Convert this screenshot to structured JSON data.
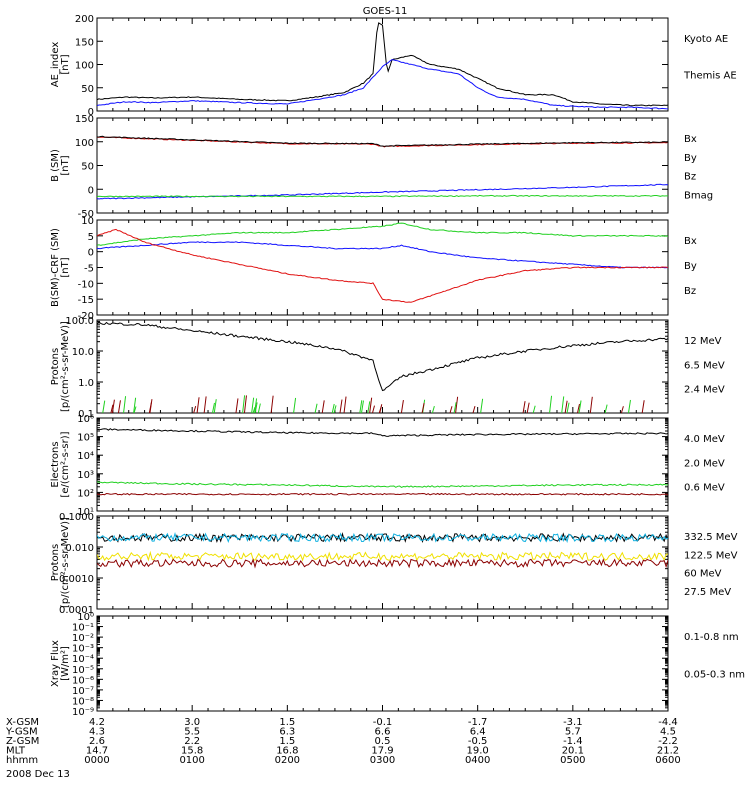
{
  "title": "GOES-11",
  "colors": {
    "black": "#000000",
    "blue": "#1010ff",
    "green": "#20d020",
    "red": "#e01010",
    "darkred": "#8b0000",
    "cyan": "#10b0e0",
    "yellow": "#f0e000"
  },
  "bottom": {
    "rows": [
      {
        "label": "X-GSM",
        "values": [
          "4.2",
          "3.0",
          "1.5",
          "-0.1",
          "-1.7",
          "-3.1",
          "-4.4"
        ]
      },
      {
        "label": "Y-GSM",
        "values": [
          "4.3",
          "5.5",
          "6.3",
          "6.6",
          "6.4",
          "5.7",
          "4.5"
        ]
      },
      {
        "label": "Z-GSM",
        "values": [
          "2.6",
          "2.2",
          "1.5",
          "0.5",
          "-0.5",
          "-1.4",
          "-2.2"
        ]
      },
      {
        "label": "MLT",
        "values": [
          "14.7",
          "15.8",
          "16.8",
          "17.9",
          "19.0",
          "20.1",
          "21.2"
        ]
      },
      {
        "label": "hhmm",
        "values": [
          "0000",
          "0100",
          "0200",
          "0300",
          "0400",
          "0500",
          "0600"
        ]
      }
    ],
    "date": "2008 Dec 13"
  },
  "chart_data": [
    {
      "type": "line",
      "ylabel": [
        "AE_index",
        "[nT]"
      ],
      "ylim": [
        0,
        200
      ],
      "yticks": [
        "0",
        "50",
        "100",
        "150",
        "200"
      ],
      "legend": [
        {
          "name": "Kyoto AE",
          "color": "#1010ff"
        },
        {
          "name": "Themis AE",
          "color": "#000000"
        }
      ],
      "series": [
        {
          "name": "Themis AE",
          "color": "#000000",
          "x": [
            0,
            0.3,
            0.6,
            1.0,
            1.5,
            2.0,
            2.3,
            2.6,
            2.8,
            2.9,
            2.95,
            3.0,
            3.05,
            3.1,
            3.3,
            3.5,
            3.8,
            4.0,
            4.2,
            4.5,
            4.8,
            5.0,
            5.3,
            5.6,
            6.0
          ],
          "values": [
            25,
            30,
            28,
            30,
            25,
            22,
            30,
            40,
            60,
            80,
            190,
            185,
            80,
            110,
            120,
            100,
            90,
            70,
            50,
            35,
            35,
            20,
            15,
            12,
            12
          ]
        },
        {
          "name": "Kyoto AE",
          "color": "#1010ff",
          "x": [
            0,
            0.3,
            0.6,
            1.0,
            1.5,
            2.0,
            2.3,
            2.6,
            2.8,
            3.0,
            3.1,
            3.3,
            3.5,
            3.8,
            4.0,
            4.2,
            4.5,
            4.8,
            5.0,
            5.3,
            5.6,
            6.0
          ],
          "values": [
            12,
            20,
            18,
            22,
            18,
            15,
            25,
            35,
            50,
            95,
            110,
            100,
            90,
            80,
            50,
            30,
            25,
            12,
            10,
            8,
            8,
            5
          ]
        }
      ]
    },
    {
      "type": "line",
      "ylabel": [
        "B (SM)",
        "[nT]"
      ],
      "ylim": [
        -50,
        150
      ],
      "yticks": [
        "-50",
        "0",
        "50",
        "100",
        "150"
      ],
      "legend": [
        {
          "name": "Bx",
          "color": "#1010ff"
        },
        {
          "name": "By",
          "color": "#20d020"
        },
        {
          "name": "Bz",
          "color": "#e01010"
        },
        {
          "name": "Bmag",
          "color": "#000000"
        }
      ],
      "series": [
        {
          "name": "Bz",
          "color": "#e01010",
          "x": [
            0,
            1,
            2,
            2.9,
            3.0,
            3.5,
            4.0,
            5.0,
            6.0
          ],
          "values": [
            110,
            103,
            96,
            95,
            90,
            92,
            94,
            97,
            98
          ]
        },
        {
          "name": "Bmag",
          "color": "#000000",
          "x": [
            0,
            1,
            2,
            2.9,
            3.0,
            3.5,
            4.0,
            5.0,
            6.0
          ],
          "values": [
            111,
            104,
            97,
            96,
            91,
            93,
            95,
            98,
            99
          ]
        },
        {
          "name": "Bx",
          "color": "#1010ff",
          "x": [
            0,
            1,
            2,
            3,
            4,
            5,
            6
          ],
          "values": [
            -20,
            -16,
            -12,
            -6,
            -1,
            4,
            10
          ]
        },
        {
          "name": "By",
          "color": "#20d020",
          "x": [
            0,
            1,
            2,
            3,
            4,
            5,
            6
          ],
          "values": [
            -15,
            -15,
            -15,
            -15,
            -14,
            -14,
            -14
          ]
        }
      ]
    },
    {
      "type": "line",
      "ylabel": [
        "B(SM)-CRF (SM)",
        "[nT]"
      ],
      "ylim": [
        -20,
        10
      ],
      "yticks": [
        "-20",
        "-15",
        "-10",
        "-5",
        "0",
        "5",
        "10"
      ],
      "legend": [
        {
          "name": "Bx",
          "color": "#1010ff"
        },
        {
          "name": "By",
          "color": "#20d020"
        },
        {
          "name": "Bz",
          "color": "#e01010"
        }
      ],
      "series": [
        {
          "name": "By",
          "color": "#20d020",
          "x": [
            0,
            0.5,
            1.0,
            1.5,
            2.0,
            2.5,
            3.0,
            3.2,
            3.5,
            4.0,
            4.5,
            5.0,
            5.5,
            6.0
          ],
          "values": [
            2,
            4,
            5,
            6,
            6,
            7,
            8,
            9,
            7,
            6,
            6,
            5,
            5,
            5
          ]
        },
        {
          "name": "Bx",
          "color": "#1010ff",
          "x": [
            0,
            0.5,
            1.0,
            1.5,
            2.0,
            2.5,
            3.0,
            3.2,
            3.5,
            4.0,
            4.5,
            5.0,
            5.5,
            6.0
          ],
          "values": [
            1,
            2,
            3,
            3,
            2,
            1,
            1,
            2,
            0,
            -2,
            -3,
            -4,
            -5,
            -5
          ]
        },
        {
          "name": "Bz",
          "color": "#e01010",
          "x": [
            0,
            0.2,
            0.5,
            1.0,
            1.5,
            2.0,
            2.5,
            2.9,
            3.0,
            3.3,
            3.6,
            4.0,
            4.5,
            5.0,
            5.5,
            6.0
          ],
          "values": [
            5,
            7,
            3,
            -1,
            -4,
            -7,
            -9,
            -10,
            -15,
            -16,
            -13,
            -9,
            -6,
            -5,
            -5,
            -5
          ]
        }
      ]
    },
    {
      "type": "line",
      "ylabel": [
        "Protons",
        "[p/(cm²-s-sr-MeV)]"
      ],
      "yscale": "log",
      "ylim": [
        0.1,
        100
      ],
      "yticks": [
        "0.1",
        "1.0",
        "10.0",
        "100.0"
      ],
      "legend": [
        {
          "name": "12 MeV",
          "color": "#8b0000"
        },
        {
          "name": "6.5 MeV",
          "color": "#20d020"
        },
        {
          "name": "2.4 MeV",
          "color": "#000000"
        }
      ],
      "series": [
        {
          "name": "2.4 MeV",
          "color": "#000000",
          "x": [
            0,
            0.5,
            1.0,
            1.5,
            2.0,
            2.5,
            2.9,
            3.0,
            3.2,
            3.5,
            4.0,
            4.5,
            5.0,
            5.5,
            6.0
          ],
          "values": [
            80,
            70,
            45,
            30,
            20,
            12,
            5,
            0.5,
            1.5,
            2.5,
            6,
            10,
            15,
            20,
            25
          ]
        }
      ]
    },
    {
      "type": "line",
      "ylabel": [
        "Electrons",
        "[e/(cm²-s-sr)]"
      ],
      "yscale": "log",
      "ylim": [
        10,
        1000000
      ],
      "yticks": [
        "10¹",
        "10²",
        "10³",
        "10⁴",
        "10⁵",
        "10⁶"
      ],
      "legend": [
        {
          "name": "4.0 MeV",
          "color": "#8b0000"
        },
        {
          "name": "2.0 MeV",
          "color": "#20d020"
        },
        {
          "name": "0.6 MeV",
          "color": "#000000"
        }
      ],
      "series": [
        {
          "name": "0.6 MeV",
          "color": "#000000",
          "x": [
            0,
            1,
            2,
            2.9,
            3.0,
            3.5,
            4.0,
            5.0,
            6.0
          ],
          "values": [
            250000,
            200000,
            160000,
            150000,
            110000,
            120000,
            130000,
            140000,
            150000
          ]
        },
        {
          "name": "2.0 MeV",
          "color": "#20d020",
          "x": [
            0,
            1,
            2,
            3,
            4,
            5,
            6
          ],
          "values": [
            350,
            280,
            250,
            200,
            220,
            250,
            260
          ]
        },
        {
          "name": "4.0 MeV",
          "color": "#8b0000",
          "x": [
            0,
            1,
            2,
            3,
            4,
            5,
            6
          ],
          "values": [
            80,
            80,
            80,
            80,
            80,
            80,
            80
          ]
        }
      ]
    },
    {
      "type": "line",
      "ylabel": [
        "Protons",
        "[p/(cm²-s-sr-MeV)]"
      ],
      "yscale": "log",
      "ylim": [
        0.0001,
        0.1
      ],
      "yticks": [
        "0.0001",
        "0.0010",
        "0.010",
        "0.1000"
      ],
      "legend": [
        {
          "name": "332.5 MeV",
          "color": "#8b0000"
        },
        {
          "name": "122.5 MeV",
          "color": "#f0e000"
        },
        {
          "name": "60 MeV",
          "color": "#10b0e0"
        },
        {
          "name": "27.5 MeV",
          "color": "#000000"
        }
      ],
      "series": [
        {
          "name": "27.5 MeV",
          "color": "#000000",
          "x": [
            0,
            6
          ],
          "values": [
            0.02,
            0.02
          ]
        },
        {
          "name": "60 MeV",
          "color": "#10b0e0",
          "x": [
            0,
            6
          ],
          "values": [
            0.02,
            0.02
          ]
        },
        {
          "name": "122.5 MeV",
          "color": "#f0e000",
          "x": [
            0,
            6
          ],
          "values": [
            0.005,
            0.005
          ]
        },
        {
          "name": "332.5 MeV",
          "color": "#8b0000",
          "x": [
            0,
            6
          ],
          "values": [
            0.003,
            0.003
          ]
        }
      ]
    },
    {
      "type": "line",
      "ylabel": [
        "Xray Flux",
        "[W/m²]"
      ],
      "yscale": "log",
      "ylim": [
        1e-09,
        1
      ],
      "yticks": [
        "10⁻⁹",
        "10⁻⁸",
        "10⁻⁷",
        "10⁻⁶",
        "10⁻⁵",
        "10⁻⁴",
        "10⁻³",
        "10⁻²",
        "10⁻¹",
        "10⁰"
      ],
      "legend": [
        {
          "name": "0.1-0.8 nm",
          "color": "#e01010"
        },
        {
          "name": "0.05-0.3 nm",
          "color": "#1010ff"
        }
      ],
      "series": []
    }
  ]
}
